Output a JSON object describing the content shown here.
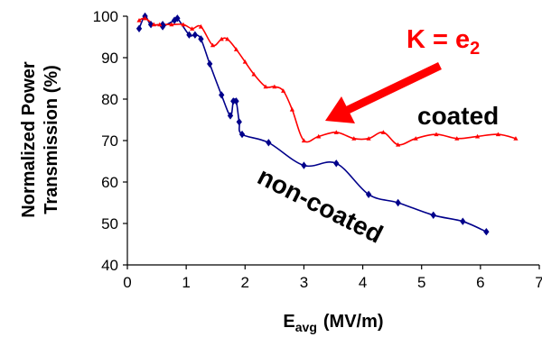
{
  "chart_data": {
    "type": "line",
    "title": "",
    "xlabel": "E",
    "xlabel_sub": "avg",
    "xlabel_units": "(MV/m)",
    "ylabel_line1": "Normalized Power",
    "ylabel_line2": "Transmission (%)",
    "xlim": [
      0,
      7
    ],
    "ylim": [
      40,
      100
    ],
    "x_ticks": [
      0,
      1,
      2,
      3,
      4,
      5,
      6,
      7
    ],
    "y_ticks": [
      40,
      50,
      60,
      70,
      80,
      90,
      100
    ],
    "grid": false,
    "legend": "none",
    "series": [
      {
        "name": "non-coated",
        "color": "#00008B",
        "marker": "diamond",
        "x": [
          0.2,
          0.3,
          0.4,
          0.6,
          0.6,
          0.8,
          0.85,
          1.05,
          1.15,
          1.25,
          1.4,
          1.6,
          1.75,
          1.8,
          1.85,
          1.9,
          1.95,
          2.4,
          3.0,
          3.55,
          4.1,
          4.6,
          5.2,
          5.7,
          6.1
        ],
        "y": [
          97,
          100,
          98,
          98,
          97.5,
          99,
          99.5,
          95.5,
          95.5,
          94.5,
          88.5,
          81,
          76,
          79.5,
          79.5,
          74.5,
          71.5,
          69.5,
          64,
          64.5,
          57,
          55,
          52,
          50.5,
          48
        ]
      },
      {
        "name": "coated",
        "color": "#FF0000",
        "marker": "triangle",
        "x": [
          0.2,
          0.3,
          0.45,
          0.55,
          0.75,
          0.95,
          1.1,
          1.25,
          1.45,
          1.6,
          1.7,
          1.85,
          2.0,
          2.15,
          2.35,
          2.5,
          2.65,
          2.8,
          3.0,
          3.25,
          3.55,
          3.85,
          4.1,
          4.35,
          4.6,
          4.9,
          5.25,
          5.6,
          5.95,
          6.3,
          6.6
        ],
        "y": [
          99,
          99.5,
          98,
          98,
          98,
          98,
          97,
          97.5,
          93,
          94.5,
          94.5,
          92,
          89,
          86,
          83,
          83,
          82,
          77.5,
          70,
          71,
          72,
          70.5,
          70.5,
          72,
          69,
          70.5,
          71.5,
          70.5,
          71,
          71.5,
          70.5
        ]
      }
    ],
    "annotations": {
      "k_prefix": "K = e",
      "k_sub": "2",
      "coated_label": "coated",
      "noncoated_label": "non-coated"
    }
  }
}
